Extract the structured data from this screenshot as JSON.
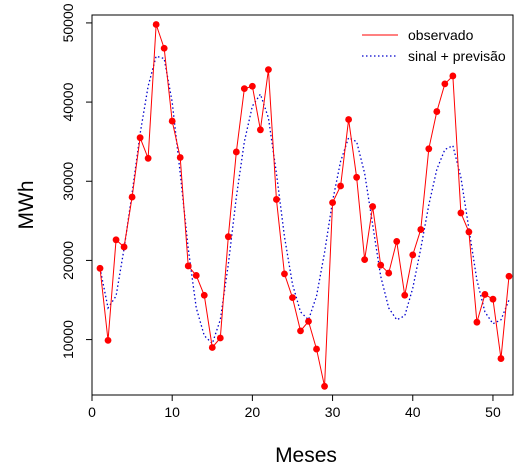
{
  "chart_data": {
    "type": "line",
    "xlabel": "Meses",
    "ylabel": "MWh",
    "xlim": [
      0,
      52.5
    ],
    "ylim": [
      3000,
      51000
    ],
    "xticks": [
      0,
      10,
      20,
      30,
      40,
      50
    ],
    "yticks": [
      10000,
      20000,
      30000,
      40000,
      50000
    ],
    "grid": false,
    "legend_position": "top-right",
    "series": [
      {
        "name": "observado",
        "color": "#ff0000",
        "line_style": "solid",
        "markers": true,
        "x": [
          1,
          2,
          3,
          4,
          5,
          6,
          7,
          8,
          9,
          10,
          11,
          12,
          13,
          14,
          15,
          16,
          17,
          18,
          19,
          20,
          21,
          22,
          23,
          24,
          25,
          26,
          27,
          28,
          29,
          30,
          31,
          32,
          33,
          34,
          35,
          36,
          37,
          38,
          39,
          40,
          41,
          42,
          43,
          44,
          45,
          46,
          47,
          48,
          49,
          50,
          51,
          52
        ],
        "values": [
          19000,
          9900,
          22600,
          21700,
          28000,
          35500,
          32900,
          49800,
          46800,
          37600,
          33000,
          19300,
          18100,
          15600,
          9000,
          10200,
          23000,
          33700,
          41700,
          42000,
          36500,
          44100,
          27700,
          18300,
          15300,
          11100,
          12300,
          8800,
          4100,
          27300,
          29400,
          37800,
          30500,
          20100,
          26800,
          19400,
          18400,
          22400,
          15600,
          20700,
          23900,
          34100,
          38800,
          42300,
          43300,
          26000,
          23600,
          12200,
          15700,
          15100,
          7600,
          18000
        ]
      },
      {
        "name": "sinal + previsão",
        "color": "#0000cc",
        "line_style": "dotted",
        "markers": false,
        "x": [
          1,
          2,
          3,
          4,
          5,
          6,
          7,
          8,
          9,
          10,
          11,
          12,
          13,
          14,
          15,
          16,
          17,
          18,
          19,
          20,
          21,
          22,
          23,
          24,
          25,
          26,
          27,
          28,
          29,
          30,
          31,
          32,
          33,
          34,
          35,
          36,
          37,
          38,
          39,
          40,
          41,
          42,
          43,
          44,
          45,
          46,
          47,
          48,
          49,
          50,
          51,
          52
        ],
        "values": [
          19000,
          14000,
          15500,
          21500,
          28500,
          36000,
          42000,
          45800,
          45500,
          40000,
          31000,
          21500,
          14000,
          10500,
          9500,
          12500,
          19500,
          28000,
          35000,
          39500,
          41000,
          38000,
          31000,
          23000,
          17000,
          13500,
          12500,
          15500,
          21000,
          27500,
          32500,
          35500,
          35000,
          31000,
          24500,
          18000,
          14000,
          12500,
          13000,
          16500,
          21500,
          27000,
          31500,
          34000,
          34500,
          30500,
          24000,
          17500,
          13500,
          12000,
          12500,
          15000
        ]
      }
    ]
  }
}
